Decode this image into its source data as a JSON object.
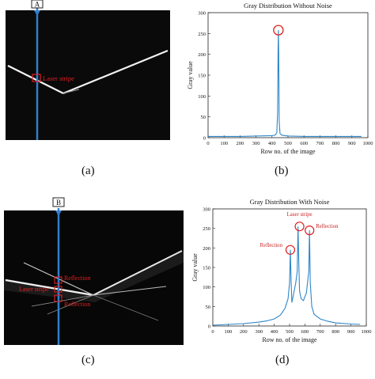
{
  "panels": {
    "a": {
      "caption": "(a)",
      "marker_label": "A",
      "stripe_label": "Laser stripe"
    },
    "b": {
      "caption": "(b)",
      "chart_data": {
        "type": "line",
        "title": "Gray Distribution Without Noise",
        "xlabel": "Row no. of the image",
        "ylabel": "Gray value",
        "xlim": [
          0,
          1000
        ],
        "ylim": [
          0,
          300
        ],
        "xticks": [
          0,
          100,
          200,
          300,
          400,
          500,
          600,
          700,
          800,
          900,
          1000
        ],
        "yticks": [
          0,
          50,
          100,
          150,
          200,
          250,
          300
        ],
        "color": "#2e86c9",
        "x": [
          0,
          100,
          200,
          300,
          400,
          420,
          430,
          435,
          438,
          440,
          442,
          445,
          450,
          460,
          500,
          600,
          700,
          800,
          900,
          960
        ],
        "y": [
          3,
          3,
          3,
          4,
          5,
          6,
          12,
          60,
          210,
          258,
          200,
          40,
          10,
          6,
          4,
          3,
          3,
          3,
          3,
          3
        ]
      }
    },
    "c": {
      "caption": "(c)",
      "marker_label": "B",
      "label_reflection_top": "Reflection",
      "label_stripe": "Laser stripe",
      "label_reflection_bottom": "Reflection"
    },
    "d": {
      "caption": "(d)",
      "chart_data": {
        "type": "line",
        "title": "Gray Distribution With Noise",
        "xlabel": "Row no. of the image",
        "ylabel": "Gray value",
        "xlim": [
          0,
          1000
        ],
        "ylim": [
          0,
          300
        ],
        "xticks": [
          0,
          100,
          200,
          300,
          400,
          500,
          600,
          700,
          800,
          900,
          1000
        ],
        "yticks": [
          0,
          50,
          100,
          150,
          200,
          250,
          300
        ],
        "color": "#2e86c9",
        "x": [
          0,
          100,
          200,
          300,
          350,
          400,
          440,
          470,
          490,
          500,
          505,
          510,
          515,
          525,
          540,
          550,
          555,
          560,
          565,
          575,
          590,
          610,
          625,
          630,
          635,
          645,
          660,
          700,
          750,
          800,
          900,
          960
        ],
        "y": [
          2,
          4,
          6,
          10,
          13,
          18,
          28,
          45,
          70,
          110,
          195,
          120,
          60,
          80,
          110,
          140,
          255,
          170,
          90,
          70,
          65,
          85,
          140,
          245,
          110,
          50,
          30,
          18,
          12,
          8,
          5,
          4
        ],
        "annotations": [
          {
            "text": "Laser stripe",
            "x": 565,
            "y": 255
          },
          {
            "text": "Reflection",
            "x": 505,
            "y": 195
          },
          {
            "text": "Reflection",
            "x": 630,
            "y": 245
          }
        ]
      }
    }
  }
}
